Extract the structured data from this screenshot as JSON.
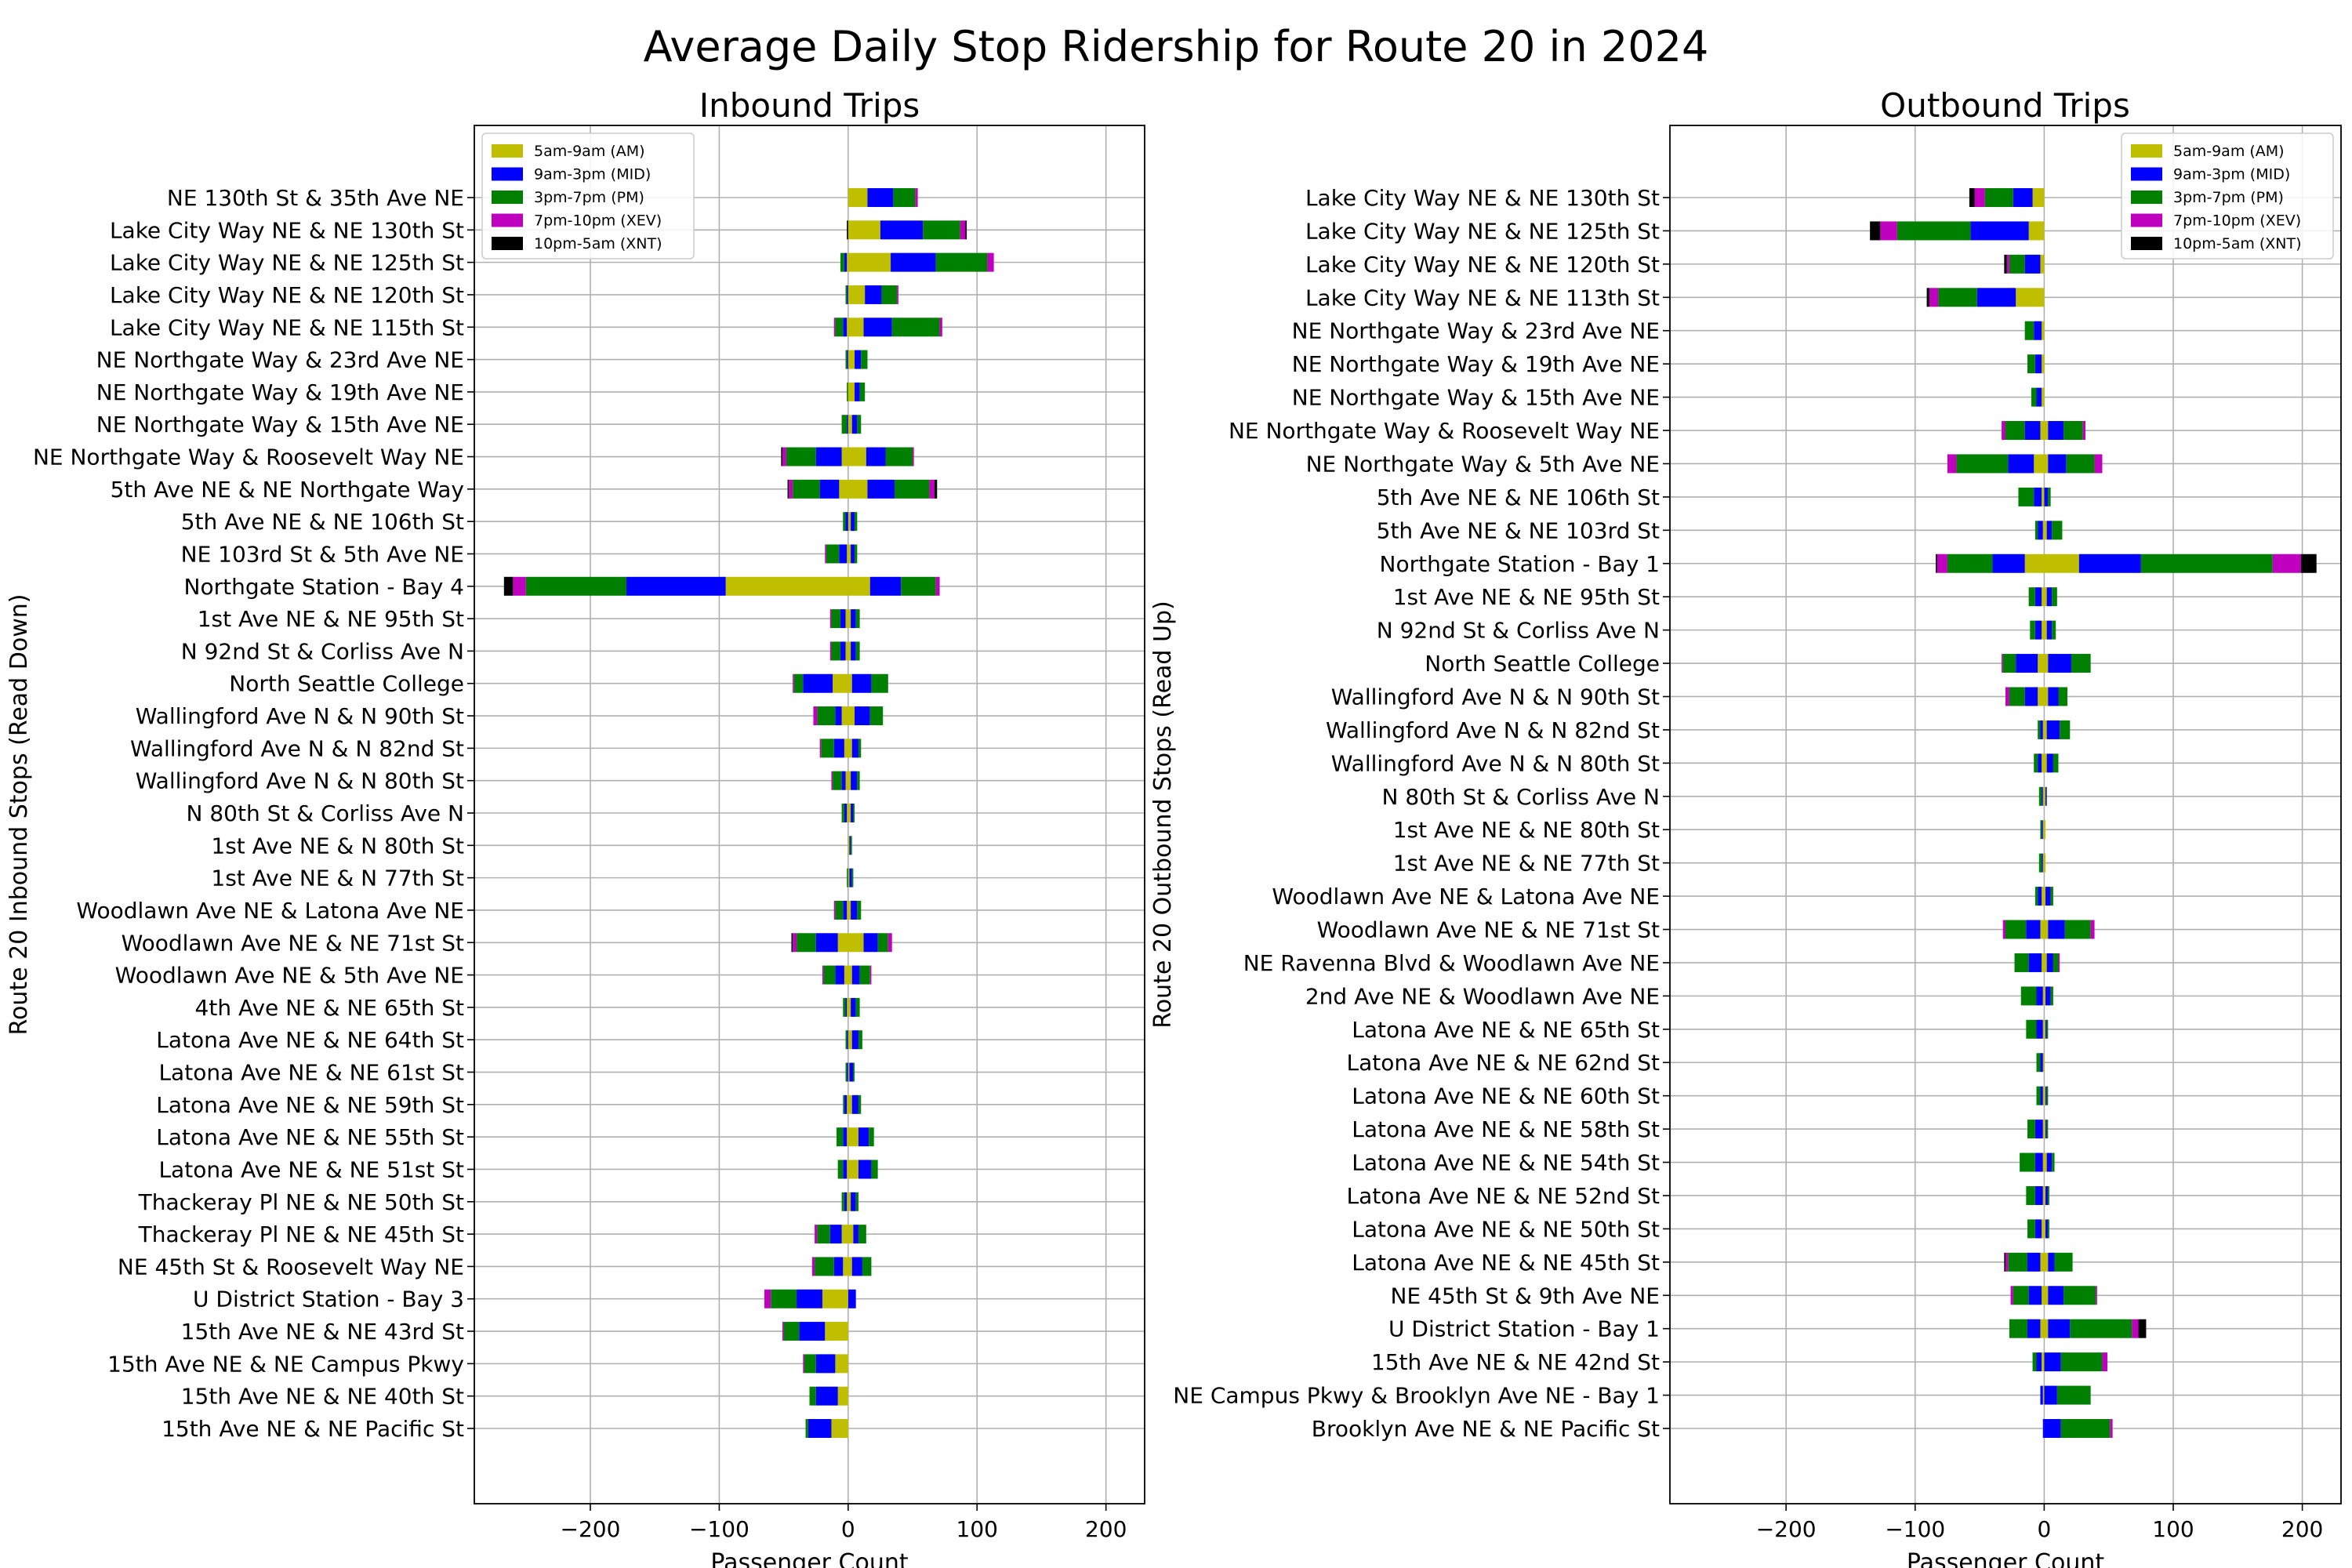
{
  "suptitle": "Average Daily Stop Ridership for Route 20 in 2024",
  "colors": {
    "AM": "#bfbf00",
    "MID": "#0000ff",
    "PM": "#008000",
    "XEV": "#bf00bf",
    "XNT": "#000000",
    "grid": "#b0b0b0"
  },
  "chart_data": [
    {
      "type": "bar",
      "orientation": "horizontal",
      "stacked": "diverging",
      "title": "Inbound Trips",
      "xlabel": "Passenger Count",
      "ylabel": "Route 20 Inbound Stops (Read Down)",
      "xlim": [
        -290,
        230
      ],
      "xticks": [
        -200,
        -100,
        0,
        100,
        200
      ],
      "xtick_labels": [
        "−200",
        "−100",
        "0",
        "100",
        "200"
      ],
      "grid": true,
      "legend_position": "upper left",
      "legend": [
        "5am-9am (AM)",
        "9am-3pm (MID)",
        "3pm-7pm (PM)",
        "7pm-10pm (XEV)",
        "10pm-5am (XNT)"
      ],
      "series_keys": [
        "AM",
        "MID",
        "PM",
        "XEV",
        "XNT"
      ],
      "note_sign": "positive values = boardings (right), negative values = alightings (left)",
      "categories": [
        "NE 130th St & 35th Ave NE",
        "Lake City Way NE & NE 130th St",
        "Lake City Way NE & NE 125th St",
        "Lake City Way NE & NE 120th St",
        "Lake City Way NE & NE 115th St",
        "NE Northgate Way & 23rd Ave NE",
        "NE Northgate Way & 19th Ave NE",
        "NE Northgate Way & 15th Ave NE",
        "NE Northgate Way & Roosevelt Way NE",
        "5th Ave NE & NE Northgate Way",
        "5th Ave NE & NE 106th St",
        "NE 103rd St & 5th Ave NE",
        "Northgate Station - Bay 4",
        "1st Ave NE & NE 95th St",
        "N 92nd St & Corliss Ave N",
        "North Seattle College",
        "Wallingford Ave N & N 90th St",
        "Wallingford Ave N & N 82nd St",
        "Wallingford Ave N & N 80th St",
        "N 80th St & Corliss Ave N",
        "1st Ave NE & N 80th St",
        "1st Ave NE & N 77th St",
        "Woodlawn Ave NE & Latona Ave NE",
        "Woodlawn Ave NE & NE 71st St",
        "Woodlawn Ave NE & 5th Ave NE",
        "4th Ave NE & NE 65th St",
        "Latona Ave NE & NE 64th St",
        "Latona Ave NE & NE 61st St",
        "Latona Ave NE & NE 59th St",
        "Latona Ave NE & NE 55th St",
        "Latona Ave NE & NE 51st St",
        "Thackeray Pl NE & NE 50th St",
        "Thackeray Pl NE & NE 45th St",
        "NE 45th St & Roosevelt Way NE",
        "U District Station - Bay 3",
        "15th Ave NE & NE 43rd St",
        "15th Ave NE & NE Campus Pkwy",
        "15th Ave NE & NE 40th St",
        "15th Ave NE & NE Pacific St"
      ],
      "positive": {
        "AM": [
          15,
          25,
          33,
          13,
          12,
          5,
          5,
          3,
          14,
          15,
          2,
          2,
          17,
          2,
          2,
          3,
          5,
          3,
          2,
          2,
          1,
          1,
          2,
          12,
          3,
          2,
          3,
          1,
          3,
          8,
          8,
          2,
          4,
          3,
          0,
          0,
          0,
          0,
          0
        ],
        "MID": [
          20,
          33,
          35,
          13,
          22,
          5,
          4,
          4,
          15,
          21,
          3,
          3,
          24,
          4,
          4,
          15,
          12,
          5,
          5,
          2,
          1,
          2,
          5,
          11,
          6,
          4,
          5,
          3,
          5,
          8,
          10,
          4,
          4,
          8,
          6,
          0,
          0,
          0,
          0
        ],
        "PM": [
          17,
          29,
          40,
          12,
          37,
          5,
          4,
          3,
          21,
          27,
          2,
          2,
          27,
          3,
          3,
          13,
          10,
          2,
          2,
          1,
          1,
          1,
          3,
          8,
          8,
          3,
          3,
          1,
          2,
          4,
          5,
          2,
          6,
          7,
          0,
          0,
          0,
          0,
          0
        ],
        "XEV": [
          2,
          4,
          5,
          1,
          2,
          0,
          0,
          0,
          1,
          4,
          0,
          0,
          3,
          0,
          0,
          0,
          0,
          0,
          0,
          0,
          0,
          0,
          0,
          3,
          1,
          0,
          0,
          0,
          0,
          0,
          0,
          0,
          0,
          0,
          0,
          0,
          0,
          0,
          0
        ],
        "XNT": [
          0,
          1,
          0,
          0,
          0,
          0,
          0,
          0,
          0,
          2,
          0,
          0,
          0,
          0,
          0,
          0,
          0,
          0,
          0,
          0,
          0,
          0,
          0,
          0,
          0,
          0,
          0,
          0,
          0,
          0,
          0,
          0,
          0,
          0,
          0,
          0,
          0,
          0,
          0
        ]
      },
      "negative": {
        "AM": [
          0,
          0,
          -1,
          0,
          -1,
          0,
          0,
          0,
          -5,
          -7,
          0,
          -1,
          -95,
          -2,
          -2,
          -12,
          -5,
          -3,
          -2,
          -1,
          0,
          0,
          -1,
          -8,
          -3,
          -1,
          0,
          0,
          -1,
          -1,
          -1,
          -1,
          -5,
          -4,
          -20,
          -18,
          -10,
          -8,
          -13
        ],
        "MID": [
          0,
          0,
          -2,
          -1,
          -3,
          -1,
          0,
          -1,
          -20,
          -15,
          -2,
          -6,
          -77,
          -4,
          -4,
          -23,
          -5,
          -8,
          -3,
          -2,
          0,
          0,
          -3,
          -17,
          -7,
          -1,
          -1,
          -1,
          -2,
          -3,
          -3,
          -2,
          -9,
          -7,
          -20,
          -20,
          -15,
          -17,
          -18
        ],
        "PM": [
          0,
          0,
          -3,
          -1,
          -6,
          -1,
          -1,
          -4,
          -23,
          -21,
          -2,
          -10,
          -78,
          -7,
          -7,
          -7,
          -14,
          -10,
          -7,
          -2,
          0,
          -1,
          -6,
          -15,
          -9,
          -2,
          -1,
          -1,
          -1,
          -5,
          -4,
          -2,
          -10,
          -15,
          -20,
          -12,
          -9,
          -5,
          -2
        ],
        "XEV": [
          0,
          0,
          0,
          0,
          -1,
          0,
          0,
          0,
          -3,
          -3,
          0,
          -1,
          -10,
          -1,
          -1,
          -1,
          -3,
          -1,
          -1,
          0,
          0,
          0,
          -1,
          -3,
          -1,
          0,
          0,
          0,
          0,
          0,
          0,
          0,
          -2,
          -2,
          -5,
          -1,
          -1,
          0,
          0
        ],
        "XNT": [
          0,
          -1,
          0,
          0,
          0,
          0,
          0,
          0,
          -1,
          -1,
          0,
          0,
          -7,
          0,
          0,
          0,
          0,
          0,
          0,
          0,
          0,
          0,
          0,
          -1,
          0,
          0,
          0,
          0,
          0,
          0,
          0,
          0,
          0,
          0,
          0,
          0,
          0,
          0,
          0
        ]
      }
    },
    {
      "type": "bar",
      "orientation": "horizontal",
      "stacked": "diverging",
      "title": "Outbound Trips",
      "xlabel": "Passenger Count",
      "ylabel": "Route 20 Outbound Stops (Read Up)",
      "xlim": [
        -290,
        230
      ],
      "xticks": [
        -200,
        -100,
        0,
        100,
        200
      ],
      "xtick_labels": [
        "−200",
        "−100",
        "0",
        "100",
        "200"
      ],
      "grid": true,
      "legend_position": "upper right",
      "legend": [
        "5am-9am (AM)",
        "9am-3pm (MID)",
        "3pm-7pm (PM)",
        "7pm-10pm (XEV)",
        "10pm-5am (XNT)"
      ],
      "series_keys": [
        "AM",
        "MID",
        "PM",
        "XEV",
        "XNT"
      ],
      "note_sign": "positive values = boardings (right), negative values = alightings (left)",
      "categories": [
        "Lake City Way NE & NE 130th St",
        "Lake City Way NE & NE 125th St",
        "Lake City Way NE & NE 120th St",
        "Lake City Way NE & NE 113th St",
        "NE Northgate Way & 23rd Ave NE",
        "NE Northgate Way & 19th Ave NE",
        "NE Northgate Way & 15th Ave NE",
        "NE Northgate Way & Roosevelt Way NE",
        "NE Northgate Way & 5th Ave NE",
        "5th Ave NE & NE 106th St",
        "5th Ave NE & NE 103rd St",
        "Northgate Station - Bay 1",
        "1st Ave NE & NE 95th St",
        "N 92nd St & Corliss Ave N",
        "North Seattle College",
        "Wallingford Ave N & N 90th St",
        "Wallingford Ave N & N 82nd St",
        "Wallingford Ave N & N 80th St",
        "N 80th St & Corliss Ave N",
        "1st Ave NE & NE 80th St",
        "1st Ave NE & NE 77th St",
        "Woodlawn Ave NE & Latona Ave NE",
        "Woodlawn Ave NE & NE 71st St",
        "NE Ravenna Blvd & Woodlawn Ave NE",
        "2nd Ave NE & Woodlawn Ave NE",
        "Latona Ave NE & NE 65th St",
        "Latona Ave NE & NE 62nd St",
        "Latona Ave NE & NE 60th St",
        "Latona Ave NE & NE 58th St",
        "Latona Ave NE & NE 54th St",
        "Latona Ave NE & NE 52nd St",
        "Latona Ave NE & NE 50th St",
        "Latona Ave NE & NE 45th St",
        "NE 45th St & 9th Ave NE",
        "U District Station - Bay 1",
        "15th Ave NE & NE 42nd St",
        "NE Campus Pkwy & Brooklyn Ave NE - Bay 1",
        "Brooklyn Ave NE & NE Pacific St"
      ],
      "positive": {
        "AM": [
          0,
          0,
          0,
          0,
          0,
          0,
          0,
          3,
          3,
          0,
          2,
          27,
          2,
          2,
          3,
          3,
          2,
          2,
          1,
          1,
          1,
          1,
          3,
          2,
          1,
          1,
          0,
          1,
          1,
          2,
          1,
          1,
          3,
          3,
          3,
          0,
          0,
          0
        ],
        "MID": [
          0,
          0,
          0,
          0,
          0,
          0,
          0,
          12,
          14,
          3,
          4,
          48,
          4,
          4,
          18,
          8,
          10,
          5,
          1,
          0,
          0,
          4,
          13,
          5,
          4,
          1,
          0,
          1,
          1,
          4,
          2,
          2,
          5,
          12,
          17,
          13,
          10,
          13
        ],
        "PM": [
          0,
          0,
          0,
          0,
          0,
          0,
          0,
          15,
          22,
          2,
          8,
          102,
          4,
          3,
          15,
          7,
          8,
          4,
          0,
          0,
          0,
          2,
          20,
          4,
          2,
          1,
          0,
          1,
          1,
          2,
          1,
          1,
          14,
          25,
          48,
          32,
          26,
          38
        ],
        "XEV": [
          0,
          0,
          0,
          0,
          0,
          0,
          0,
          2,
          6,
          0,
          0,
          22,
          0,
          0,
          0,
          0,
          0,
          0,
          0,
          0,
          0,
          0,
          3,
          1,
          0,
          0,
          0,
          0,
          0,
          0,
          0,
          0,
          0,
          1,
          5,
          4,
          0,
          2
        ],
        "XNT": [
          0,
          0,
          0,
          0,
          0,
          0,
          0,
          0,
          0,
          0,
          0,
          12,
          0,
          0,
          0,
          0,
          0,
          0,
          0,
          0,
          0,
          0,
          0,
          0,
          0,
          0,
          0,
          0,
          0,
          0,
          0,
          0,
          0,
          0,
          6,
          0,
          0,
          0
        ]
      },
      "negative": {
        "AM": [
          -9,
          -12,
          -3,
          -22,
          -2,
          -2,
          -2,
          -3,
          -8,
          -2,
          -1,
          -15,
          -2,
          -2,
          -5,
          -5,
          -1,
          -2,
          -1,
          -1,
          -1,
          -2,
          -3,
          -2,
          -1,
          -1,
          -1,
          -1,
          -1,
          -1,
          -1,
          -2,
          -3,
          -2,
          -3,
          -2,
          -1,
          0
        ],
        "MID": [
          -15,
          -45,
          -12,
          -30,
          -6,
          -5,
          -4,
          -12,
          -20,
          -6,
          -4,
          -25,
          -5,
          -5,
          -17,
          -10,
          -2,
          -3,
          -1,
          -1,
          -1,
          -3,
          -11,
          -10,
          -5,
          -5,
          -2,
          -2,
          -6,
          -6,
          -6,
          -5,
          -10,
          -10,
          -10,
          -4,
          -2,
          -1
        ],
        "PM": [
          -22,
          -57,
          -12,
          -30,
          -7,
          -6,
          -4,
          -15,
          -40,
          -12,
          -2,
          -35,
          -5,
          -4,
          -10,
          -12,
          -2,
          -3,
          -2,
          -1,
          -2,
          -2,
          -16,
          -11,
          -12,
          -8,
          -3,
          -3,
          -6,
          -12,
          -7,
          -6,
          -15,
          -12,
          -14,
          -3,
          0,
          0
        ],
        "XEV": [
          -8,
          -13,
          -2,
          -7,
          0,
          0,
          0,
          -3,
          -7,
          0,
          0,
          -8,
          0,
          0,
          -1,
          -3,
          0,
          0,
          0,
          0,
          0,
          0,
          -2,
          0,
          0,
          0,
          0,
          0,
          0,
          0,
          0,
          0,
          -2,
          -2,
          0,
          0,
          0,
          0
        ],
        "XNT": [
          -4,
          -8,
          -2,
          -2,
          0,
          0,
          0,
          0,
          0,
          0,
          0,
          -1,
          0,
          0,
          0,
          0,
          0,
          0,
          0,
          0,
          0,
          0,
          0,
          0,
          0,
          0,
          0,
          0,
          0,
          0,
          0,
          0,
          -1,
          0,
          0,
          0,
          0,
          0
        ]
      }
    }
  ]
}
